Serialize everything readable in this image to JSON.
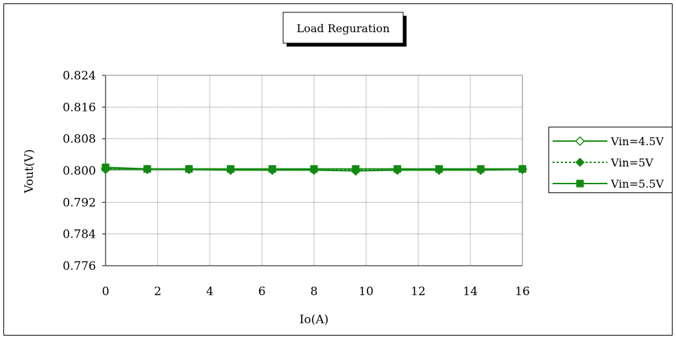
{
  "chart_data": {
    "type": "line",
    "title": "Load Reguration",
    "xlabel": "Io(A)",
    "ylabel": "Vout(V)",
    "xlim": [
      0,
      16
    ],
    "ylim": [
      0.776,
      0.824
    ],
    "xticks": [
      0,
      2,
      4,
      6,
      8,
      10,
      12,
      14,
      16
    ],
    "yticks": [
      0.776,
      0.784,
      0.792,
      0.8,
      0.808,
      0.816,
      0.824
    ],
    "xtick_labels": [
      "0",
      "2",
      "4",
      "6",
      "8",
      "10",
      "12",
      "14",
      "16"
    ],
    "ytick_labels": [
      "0.776",
      "0.784",
      "0.792",
      "0.800",
      "0.808",
      "0.816",
      "0.824"
    ],
    "grid": true,
    "legend_position": "right",
    "x": [
      0,
      1.6,
      3.2,
      4.8,
      6.4,
      8.0,
      9.6,
      11.2,
      12.8,
      14.4,
      16.0
    ],
    "series": [
      {
        "name": "Vin=4.5V",
        "marker": "diamond-open",
        "line": "solid",
        "color": "#128a12",
        "values": [
          0.8003,
          0.8003,
          0.8003,
          0.8001,
          0.8001,
          0.8001,
          0.7999,
          0.8001,
          0.8001,
          0.8001,
          0.8003
        ]
      },
      {
        "name": "Vin=5V",
        "marker": "diamond-filled",
        "line": "dotted",
        "color": "#128a12",
        "values": [
          0.8006,
          0.8003,
          0.8003,
          0.8002,
          0.8002,
          0.8002,
          0.8001,
          0.8002,
          0.8002,
          0.8002,
          0.8003
        ]
      },
      {
        "name": "Vin=5.5V",
        "marker": "square-filled",
        "line": "solid",
        "color": "#128a12",
        "values": [
          0.8008,
          0.8004,
          0.8004,
          0.8004,
          0.8004,
          0.8004,
          0.8004,
          0.8004,
          0.8004,
          0.8004,
          0.8004
        ]
      }
    ]
  }
}
